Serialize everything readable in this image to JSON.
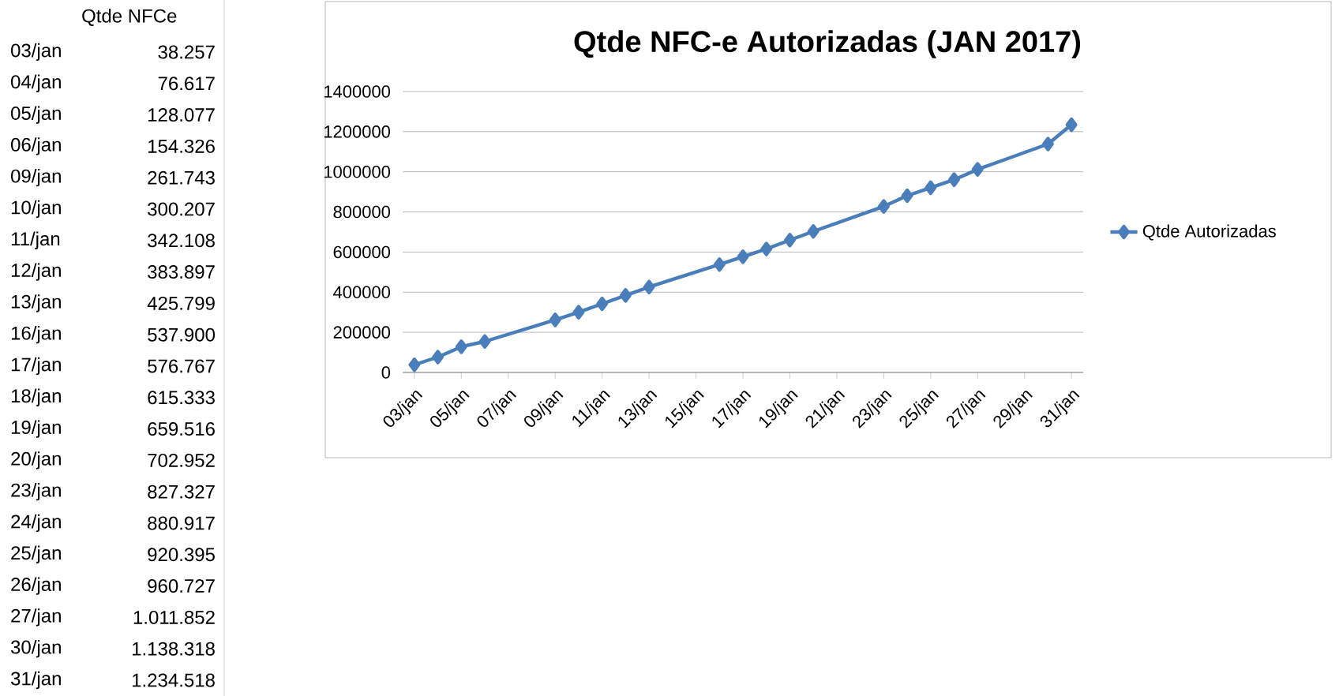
{
  "chart_data": [
    {
      "type": "other",
      "annotations": [
        "Qtde NFCe"
      ],
      "categories": [
        "03/jan",
        "04/jan",
        "05/jan",
        "06/jan",
        "09/jan",
        "10/jan",
        "11/jan",
        "12/jan",
        "13/jan",
        "16/jan",
        "17/jan",
        "18/jan",
        "19/jan",
        "20/jan",
        "23/jan",
        "24/jan",
        "25/jan",
        "26/jan",
        "27/jan",
        "30/jan",
        "31/jan"
      ],
      "value_labels": [
        "38.257",
        "76.617",
        "128.077",
        "154.326",
        "261.743",
        "300.207",
        "342.108",
        "383.897",
        "425.799",
        "537.900",
        "576.767",
        "615.333",
        "659.516",
        "702.952",
        "827.327",
        "880.917",
        "920.395",
        "960.727",
        "1.011.852",
        "1.138.318",
        "1.234.518"
      ]
    },
    {
      "type": "line",
      "title": "Qtde NFC-e Autorizadas (JAN 2017)",
      "x": [
        "2017-01-03",
        "2017-01-04",
        "2017-01-05",
        "2017-01-06",
        "2017-01-09",
        "2017-01-10",
        "2017-01-11",
        "2017-01-12",
        "2017-01-13",
        "2017-01-16",
        "2017-01-17",
        "2017-01-18",
        "2017-01-19",
        "2017-01-20",
        "2017-01-23",
        "2017-01-24",
        "2017-01-25",
        "2017-01-26",
        "2017-01-27",
        "2017-01-30",
        "2017-01-31"
      ],
      "series": [
        {
          "name": "Qtde Autorizadas",
          "color": "#4a7ebb",
          "values": [
            38257,
            76617,
            128077,
            154326,
            261743,
            300207,
            342108,
            383897,
            425799,
            537900,
            576767,
            615333,
            659516,
            702952,
            827327,
            880917,
            920395,
            960727,
            1011852,
            1138318,
            1234518
          ]
        }
      ],
      "xlim": [
        "2017-01-02T12:00",
        "2017-01-31T12:00"
      ],
      "xticks": [
        {
          "value": "2017-01-03",
          "label": "03/jan"
        },
        {
          "value": "2017-01-05",
          "label": "05/jan"
        },
        {
          "value": "2017-01-07",
          "label": "07/jan"
        },
        {
          "value": "2017-01-09",
          "label": "09/jan"
        },
        {
          "value": "2017-01-11",
          "label": "11/jan"
        },
        {
          "value": "2017-01-13",
          "label": "13/jan"
        },
        {
          "value": "2017-01-15",
          "label": "15/jan"
        },
        {
          "value": "2017-01-17",
          "label": "17/jan"
        },
        {
          "value": "2017-01-19",
          "label": "19/jan"
        },
        {
          "value": "2017-01-21",
          "label": "21/jan"
        },
        {
          "value": "2017-01-23",
          "label": "23/jan"
        },
        {
          "value": "2017-01-25",
          "label": "25/jan"
        },
        {
          "value": "2017-01-27",
          "label": "27/jan"
        },
        {
          "value": "2017-01-29",
          "label": "29/jan"
        },
        {
          "value": "2017-01-31",
          "label": "31/jan"
        }
      ],
      "ylim": [
        0,
        1400000
      ],
      "yticks": [
        0,
        200000,
        400000,
        600000,
        800000,
        1000000,
        1200000,
        1400000
      ],
      "grid": "y",
      "legend": "right",
      "marker": "diamond",
      "line_style": "solid"
    }
  ]
}
